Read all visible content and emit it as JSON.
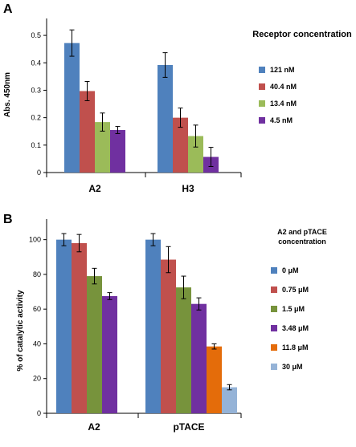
{
  "chart_data": [
    {
      "panel": "A",
      "type": "bar",
      "title": "",
      "ylabel": "Abs. 450nm",
      "xlabel": "",
      "ylim": [
        0,
        0.55
      ],
      "yticks": [
        "0",
        "0.1",
        "0.2",
        "0.3",
        "0.4",
        "0.5"
      ],
      "ytick_values": [
        0,
        0.1,
        0.2,
        0.3,
        0.4,
        0.5
      ],
      "categories": [
        "A2",
        "H3"
      ],
      "legend_title": "Receptor concentration",
      "legend_position": "right",
      "grid": false,
      "series": [
        {
          "name": "121 nM",
          "color": "#4f81bd",
          "values": [
            0.472,
            0.392
          ],
          "errors": [
            0.048,
            0.045
          ]
        },
        {
          "name": "40.4 nM",
          "color": "#c0504d",
          "values": [
            0.297,
            0.2
          ],
          "errors": [
            0.035,
            0.035
          ]
        },
        {
          "name": "13.4 nM",
          "color": "#9bbb59",
          "values": [
            0.184,
            0.133
          ],
          "errors": [
            0.033,
            0.04
          ]
        },
        {
          "name": "4.5 nM",
          "color": "#7030a0",
          "values": [
            0.155,
            0.057
          ],
          "errors": [
            0.013,
            0.035
          ]
        }
      ]
    },
    {
      "panel": "B",
      "type": "bar",
      "title": "",
      "ylabel": "% of catalytic activity",
      "xlabel": "",
      "ylim": [
        0,
        110
      ],
      "yticks": [
        "0",
        "20",
        "40",
        "60",
        "80",
        "100"
      ],
      "ytick_values": [
        0,
        20,
        40,
        60,
        80,
        100
      ],
      "categories": [
        "A2",
        "pTACE"
      ],
      "legend_title": "A2 and pTACE concentration",
      "legend_title_lines": [
        "A2 and pTACE",
        "concentration"
      ],
      "legend_position": "right",
      "grid": false,
      "series": [
        {
          "name": "0 μM",
          "color": "#4f81bd",
          "values": [
            100,
            100
          ],
          "errors": [
            3.5,
            3.5
          ]
        },
        {
          "name": "0.75 μM",
          "color": "#c0504d",
          "values": [
            98,
            88.5
          ],
          "errors": [
            5.0,
            7.5
          ]
        },
        {
          "name": "1.5 μM",
          "color": "#77933c",
          "values": [
            79,
            72.5
          ],
          "errors": [
            4.5,
            6.5
          ]
        },
        {
          "name": "3.48 μM",
          "color": "#7030a0",
          "values": [
            67.5,
            63
          ],
          "errors": [
            2.0,
            3.5
          ]
        },
        {
          "name": "11.8 μM",
          "color": "#e46c0a",
          "values": [
            null,
            38.5
          ],
          "errors": [
            null,
            1.5
          ]
        },
        {
          "name": "30 μM",
          "color": "#95b3d7",
          "values": [
            null,
            15
          ],
          "errors": [
            null,
            1.5
          ]
        }
      ]
    }
  ]
}
